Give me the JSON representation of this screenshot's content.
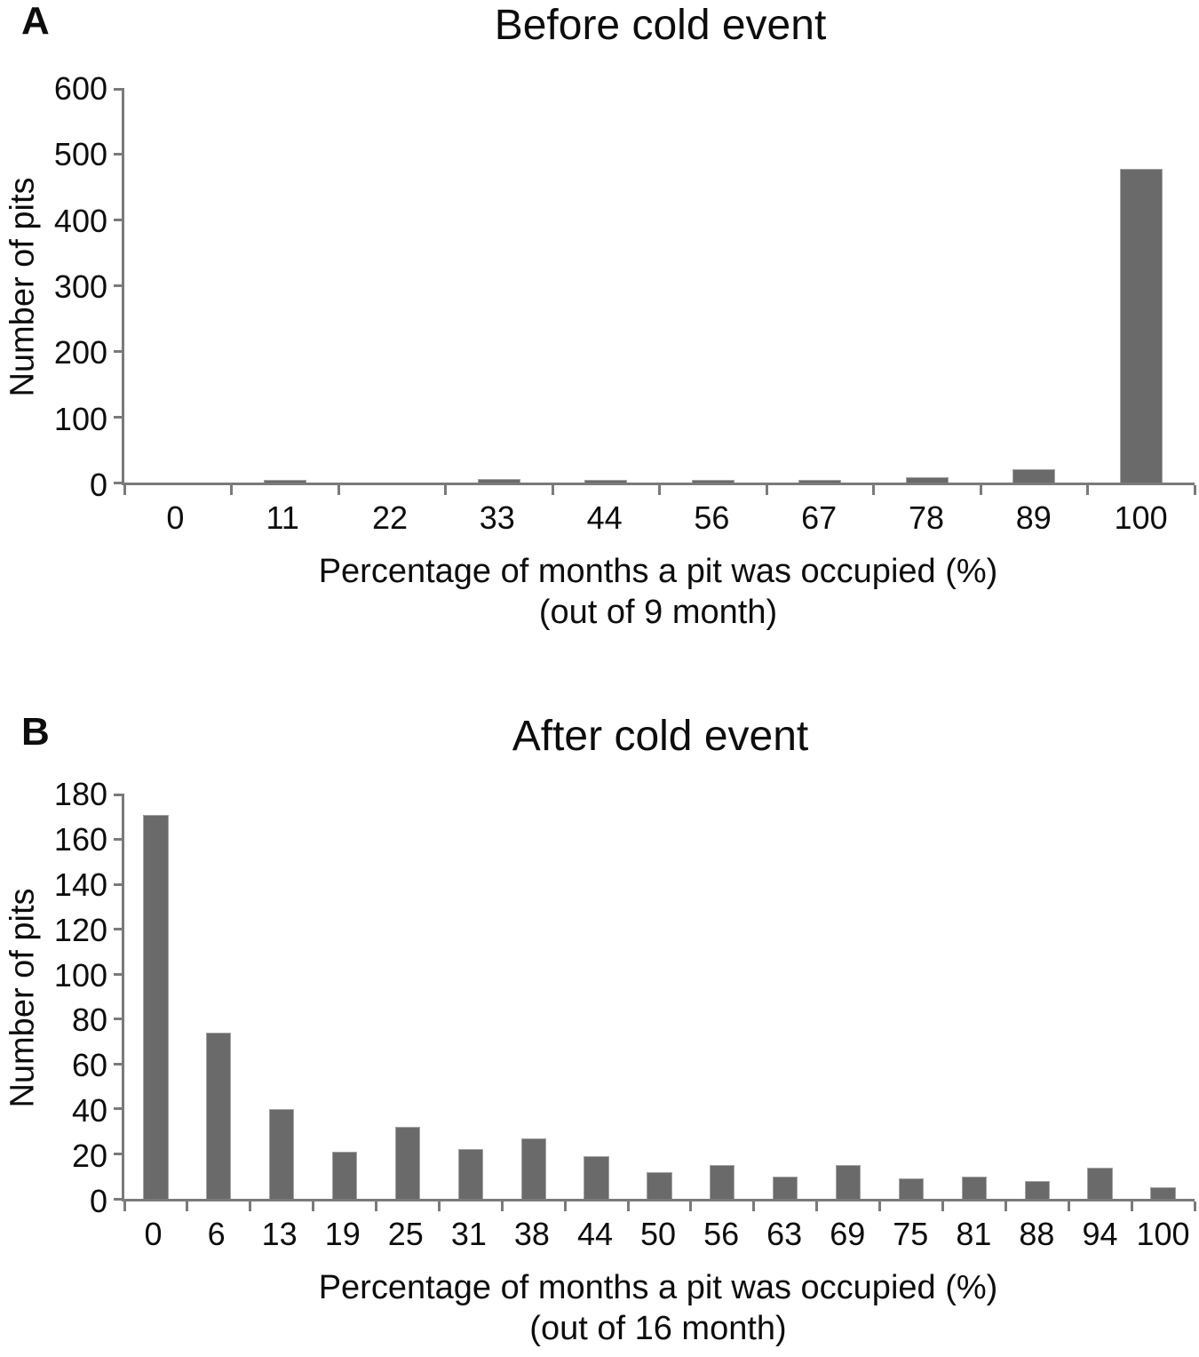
{
  "figure": {
    "bar_color": "#6a6a6a",
    "axis_color": "#7a7a7a",
    "text_color": "#0d0d0d",
    "background_color": "#ffffff"
  },
  "chart_data": [
    {
      "type": "bar",
      "panel_label": "A",
      "title": "Before cold event",
      "ylabel": "Number of pits",
      "xlabel_line1": "Percentage of months a pit was occupied (%)",
      "xlabel_line2": "(out of 9 month)",
      "categories": [
        "0",
        "11",
        "22",
        "33",
        "44",
        "56",
        "67",
        "78",
        "89",
        "100"
      ],
      "values": [
        0,
        4,
        0,
        5,
        4,
        4,
        4,
        8,
        20,
        478
      ],
      "y_ticks": [
        600,
        500,
        400,
        300,
        200,
        100,
        0
      ],
      "ylim": [
        0,
        600
      ],
      "grid": false,
      "legend": "none"
    },
    {
      "type": "bar",
      "panel_label": "B",
      "title": "After cold event",
      "ylabel": "Number of pits",
      "xlabel_line1": "Percentage of months a pit was occupied (%)",
      "xlabel_line2": "(out of 16 month)",
      "categories": [
        "0",
        "6",
        "13",
        "19",
        "25",
        "31",
        "38",
        "44",
        "50",
        "56",
        "63",
        "69",
        "75",
        "81",
        "88",
        "94",
        "100"
      ],
      "values": [
        171,
        74,
        40,
        21,
        32,
        22,
        27,
        19,
        12,
        15,
        10,
        15,
        9,
        10,
        8,
        14,
        5
      ],
      "y_ticks": [
        180,
        160,
        140,
        120,
        100,
        80,
        60,
        40,
        20,
        0
      ],
      "ylim": [
        0,
        180
      ],
      "grid": false,
      "legend": "none"
    }
  ]
}
